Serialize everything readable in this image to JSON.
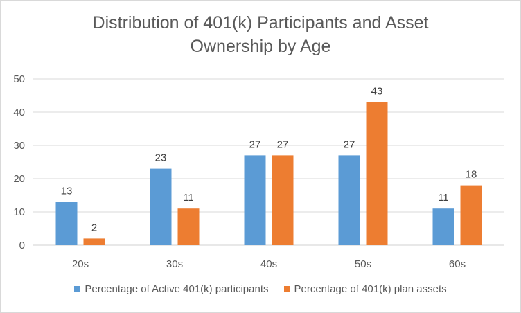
{
  "chart_data": {
    "type": "bar",
    "title_lines": [
      "Distribution of 401(k) Participants and Asset",
      "Ownership by Age"
    ],
    "categories": [
      "20s",
      "30s",
      "40s",
      "50s",
      "60s"
    ],
    "series": [
      {
        "name": "Percentage of Active 401(k) participants",
        "values": [
          13,
          23,
          27,
          27,
          11
        ],
        "color": "#5B9BD5"
      },
      {
        "name": "Percentage of 401(k) plan assets",
        "values": [
          2,
          11,
          27,
          43,
          18
        ],
        "color": "#ED7D31"
      }
    ],
    "ylim": [
      0,
      50
    ],
    "yticks": [
      0,
      10,
      20,
      30,
      40,
      50
    ],
    "grid": true,
    "legend_position": "bottom"
  }
}
